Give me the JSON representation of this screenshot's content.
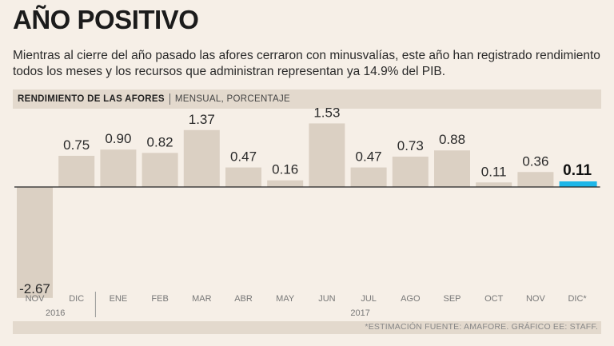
{
  "title": "AÑO POSITIVO",
  "subtitle": "Mientras al cierre del año pasado las afores cerraron con minusvalías, este año han registrado rendimiento todos los meses y los recursos que administran representan ya 14.9% del PIB.",
  "header": {
    "title": "RENDIMIENTO DE LAS AFORES",
    "subtitle": "MENSUAL, PORCENTAJE"
  },
  "footer": {
    "note": "*ESTIMACIÓN  FUENTE: AMAFORE. GRÁFICO EE: STAFF."
  },
  "colors": {
    "bar": "#dbd0c3",
    "highlight": "#1eb6e8",
    "baseline": "#222222"
  },
  "chart_data": {
    "type": "bar",
    "categories": [
      "NOV",
      "DIC",
      "ENE",
      "FEB",
      "MAR",
      "ABR",
      "MAY",
      "JUN",
      "JUL",
      "AGO",
      "SEP",
      "OCT",
      "NOV",
      "DIC*"
    ],
    "values": [
      -2.67,
      0.75,
      0.9,
      0.82,
      1.37,
      0.47,
      0.16,
      1.53,
      0.47,
      0.73,
      0.88,
      0.11,
      0.36,
      0.11
    ],
    "value_labels": [
      "-2.67",
      "0.75",
      "0.90",
      "0.82",
      "1.37",
      "0.47",
      "0.16",
      "1.53",
      "0.47",
      "0.73",
      "0.88",
      "0.11",
      "0.36",
      "0.11"
    ],
    "highlight_index": 13,
    "year_groups": [
      {
        "label": "2016",
        "start": 0,
        "end": 1
      },
      {
        "label": "2017",
        "start": 2,
        "end": 13
      }
    ],
    "title": "RENDIMIENTO DE LAS AFORES",
    "ylabel": "MENSUAL, PORCENTAJE",
    "ylim": [
      -2.67,
      1.53
    ]
  }
}
